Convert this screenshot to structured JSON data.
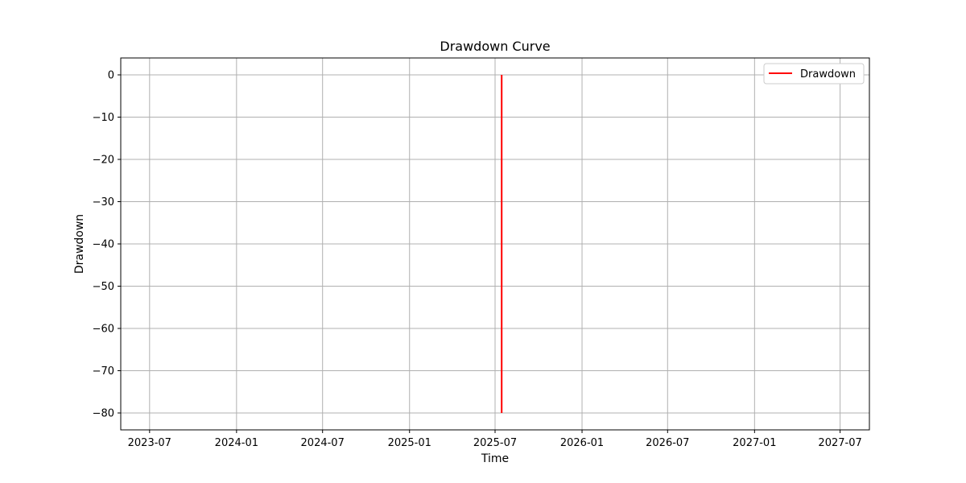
{
  "chart_data": {
    "type": "line",
    "title": "Drawdown Curve",
    "xlabel": "Time",
    "ylabel": "Drawdown",
    "x_ticks": [
      "2023-07",
      "2024-01",
      "2024-07",
      "2025-01",
      "2025-07",
      "2026-01",
      "2026-07",
      "2027-01",
      "2027-07"
    ],
    "y_ticks": [
      0,
      -10,
      -20,
      -30,
      -40,
      -50,
      -60,
      -70,
      -80
    ],
    "xlim": [
      "2023-05-01",
      "2027-09-01"
    ],
    "ylim": [
      -84,
      4
    ],
    "grid": true,
    "legend_position": "top-right",
    "series": [
      {
        "name": "Drawdown",
        "color": "#ff0000",
        "x": [
          "2025-07-15",
          "2025-07-15"
        ],
        "y": [
          0,
          -80
        ]
      }
    ]
  }
}
